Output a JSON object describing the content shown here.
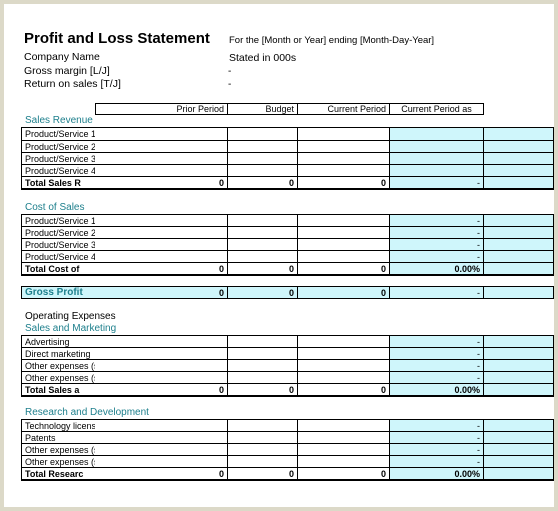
{
  "header": {
    "title": "Profit and Loss Statement",
    "subtitle": "For the [Month or Year] ending [Month-Day-Year]",
    "company_name": "Company Name",
    "stated_in": "Stated in 000s",
    "gross_margin_label": "Gross margin  [L/J]",
    "gross_margin_value": "-",
    "return_on_sales_label": "Return on sales  [T/J]",
    "return_on_sales_value": "-"
  },
  "columns": [
    "",
    "Prior Period",
    "Budget",
    "Current Period",
    "Current Period as",
    ""
  ],
  "sales_revenue": {
    "heading": "Sales Revenue",
    "rows": [
      "Product/Service 1",
      "Product/Service 2",
      "Product/Service 3",
      "Product/Service 4"
    ],
    "total": {
      "label": "Total Sales R",
      "prior": "0",
      "budget": "0",
      "current": "0",
      "pct": "-"
    }
  },
  "cost_of_sales": {
    "heading": "Cost of Sales",
    "rows": [
      "Product/Service 1",
      "Product/Service 2",
      "Product/Service 3",
      "Product/Service 4"
    ],
    "row_pct": "-",
    "total": {
      "label": "Total Cost of",
      "prior": "0",
      "budget": "0",
      "current": "0",
      "pct": "0.00%"
    }
  },
  "gross_profit": {
    "label": "Gross Profit",
    "prior": "0",
    "budget": "0",
    "current": "0",
    "pct": "-"
  },
  "operating_expenses": {
    "heading": "Operating Expenses",
    "sales_marketing": {
      "heading": "Sales and Marketing",
      "rows": [
        "Advertising",
        "Direct marketing",
        "Other expenses (specify)",
        "Other expenses (specify)"
      ],
      "row_pct": "-",
      "total": {
        "label": "Total Sales a",
        "prior": "0",
        "budget": "0",
        "current": "0",
        "pct": "0.00%"
      }
    },
    "research_dev": {
      "heading": "Research and Development",
      "rows": [
        "Technology licenses",
        "Patents",
        "Other expenses (specify)",
        "Other expenses (specify)"
      ],
      "row_pct": "-",
      "total": {
        "label": "Total Researc",
        "prior": "0",
        "budget": "0",
        "current": "0",
        "pct": "0.00%"
      }
    }
  }
}
